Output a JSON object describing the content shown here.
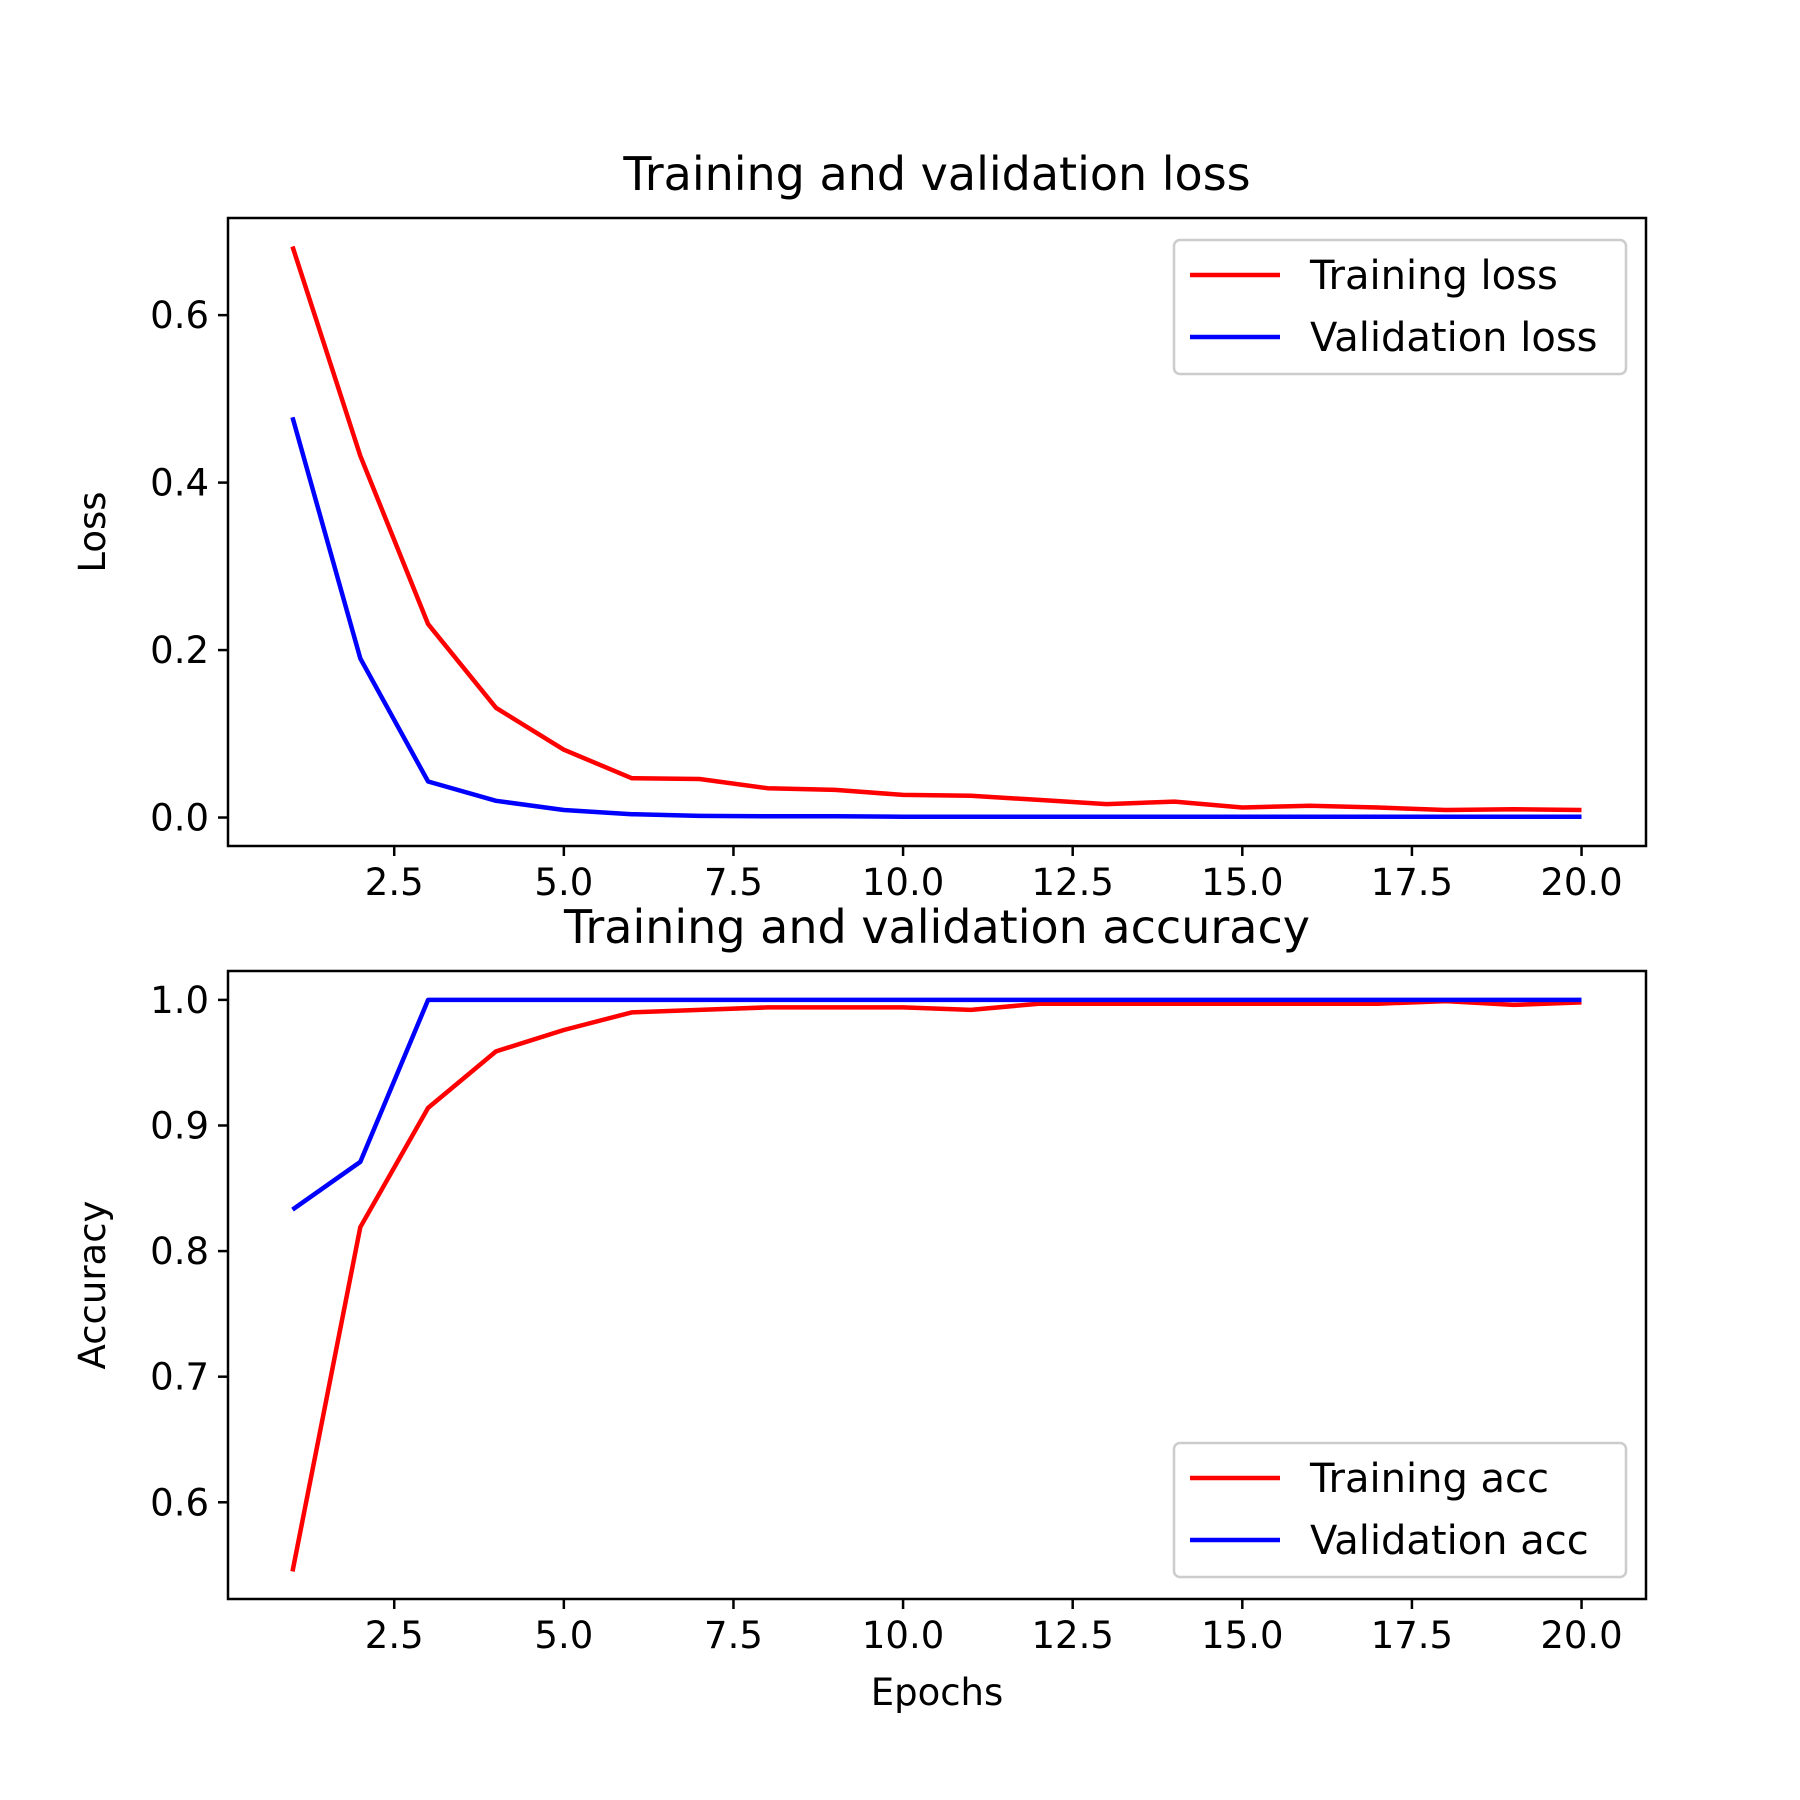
{
  "colors": {
    "training": "#ff0000",
    "validation": "#0000ff"
  },
  "chart_data": [
    {
      "type": "line",
      "title": "Training and validation loss",
      "xlabel": "",
      "ylabel": "Loss",
      "xlim": [
        0.05,
        20.95
      ],
      "ylim": [
        -0.034,
        0.716
      ],
      "xticks": [
        2.5,
        5.0,
        7.5,
        10.0,
        12.5,
        15.0,
        17.5,
        20.0
      ],
      "xtick_labels": [
        "2.5",
        "5.0",
        "7.5",
        "10.0",
        "12.5",
        "15.0",
        "17.5",
        "20.0"
      ],
      "yticks": [
        0.0,
        0.2,
        0.4,
        0.6
      ],
      "ytick_labels": [
        "0.0",
        "0.2",
        "0.4",
        "0.6"
      ],
      "legend": "top-right",
      "x": [
        1,
        2,
        3,
        4,
        5,
        6,
        7,
        8,
        9,
        10,
        11,
        12,
        13,
        14,
        15,
        16,
        17,
        18,
        19,
        20
      ],
      "series": [
        {
          "name": "Training loss",
          "color": "#ff0000",
          "values": [
            0.682,
            0.432,
            0.231,
            0.131,
            0.081,
            0.047,
            0.046,
            0.035,
            0.033,
            0.027,
            0.026,
            0.021,
            0.016,
            0.019,
            0.012,
            0.014,
            0.012,
            0.009,
            0.01,
            0.009
          ]
        },
        {
          "name": "Validation loss",
          "color": "#0000ff",
          "values": [
            0.478,
            0.19,
            0.043,
            0.02,
            0.009,
            0.004,
            0.002,
            0.0015,
            0.0015,
            0.001,
            0.001,
            0.001,
            0.001,
            0.001,
            0.001,
            0.001,
            0.001,
            0.001,
            0.001,
            0.001
          ]
        }
      ]
    },
    {
      "type": "line",
      "title": "Training and validation accuracy",
      "xlabel": "Epochs",
      "ylabel": "Accuracy",
      "xlim": [
        0.05,
        20.95
      ],
      "ylim": [
        0.523,
        1.023
      ],
      "xticks": [
        2.5,
        5.0,
        7.5,
        10.0,
        12.5,
        15.0,
        17.5,
        20.0
      ],
      "xtick_labels": [
        "2.5",
        "5.0",
        "7.5",
        "10.0",
        "12.5",
        "15.0",
        "17.5",
        "20.0"
      ],
      "yticks": [
        0.6,
        0.7,
        0.8,
        0.9,
        1.0
      ],
      "ytick_labels": [
        "0.6",
        "0.7",
        "0.8",
        "0.9",
        "1.0"
      ],
      "legend": "bottom-right",
      "x": [
        1,
        2,
        3,
        4,
        5,
        6,
        7,
        8,
        9,
        10,
        11,
        12,
        13,
        14,
        15,
        16,
        17,
        18,
        19,
        20
      ],
      "series": [
        {
          "name": "Training acc",
          "color": "#ff0000",
          "values": [
            0.545,
            0.819,
            0.914,
            0.959,
            0.976,
            0.99,
            0.992,
            0.994,
            0.994,
            0.994,
            0.992,
            0.997,
            0.997,
            0.997,
            0.997,
            0.997,
            0.997,
            0.999,
            0.996,
            0.998
          ]
        },
        {
          "name": "Validation acc",
          "color": "#0000ff",
          "values": [
            0.833,
            0.871,
            1.0,
            1.0,
            1.0,
            1.0,
            1.0,
            1.0,
            1.0,
            1.0,
            1.0,
            1.0,
            1.0,
            1.0,
            1.0,
            1.0,
            1.0,
            1.0,
            1.0,
            1.0
          ]
        }
      ]
    }
  ]
}
